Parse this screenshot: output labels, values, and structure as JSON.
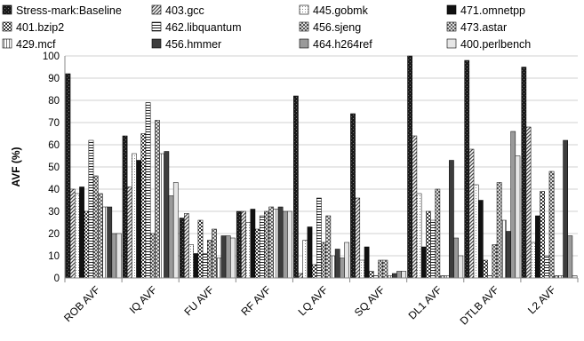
{
  "chart_data": {
    "type": "bar",
    "title": "",
    "xlabel": "",
    "ylabel": "AVF (%)",
    "ylim": [
      0,
      100
    ],
    "yticks": [
      0,
      10,
      20,
      30,
      40,
      50,
      60,
      70,
      80,
      90,
      100
    ],
    "grid": true,
    "legend_position": "top",
    "categories": [
      "ROB AVF",
      "IQ AVF",
      "FU AVF",
      "RF AVF",
      "LQ AVF",
      "SQ AVF",
      "DL1 AVF",
      "DTLB AVF",
      "L2 AVF"
    ],
    "series": [
      {
        "name": "Stress-mark:Baseline",
        "pattern": "p-stress",
        "values": [
          92,
          64,
          27,
          30,
          82,
          74,
          100,
          98,
          95
        ]
      },
      {
        "name": "403.gcc",
        "pattern": "p-bdiag",
        "values": [
          40,
          41,
          29,
          30,
          2,
          36,
          64,
          58,
          68
        ]
      },
      {
        "name": "445.gobmk",
        "pattern": "p-dots",
        "values": [
          38,
          56,
          15,
          25,
          17,
          8,
          38,
          42,
          16
        ]
      },
      {
        "name": "471.omnetpp",
        "pattern": "p-black",
        "values": [
          41,
          53,
          11,
          31,
          23,
          14,
          14,
          35,
          28
        ]
      },
      {
        "name": "401.bzip2",
        "pattern": "p-checker",
        "values": [
          30,
          65,
          26,
          22,
          6,
          3,
          30,
          8,
          39
        ]
      },
      {
        "name": "462.libquantum",
        "pattern": "p-hlines",
        "values": [
          62,
          79,
          11,
          28,
          36,
          1,
          26,
          1,
          10
        ]
      },
      {
        "name": "456.sjeng",
        "pattern": "p-diamond",
        "values": [
          46,
          20,
          17,
          30,
          16,
          8,
          40,
          15,
          48
        ]
      },
      {
        "name": "473.astar",
        "pattern": "p-xhatch",
        "values": [
          38,
          71,
          22,
          32,
          28,
          8,
          1,
          43,
          1
        ]
      },
      {
        "name": "429.mcf",
        "pattern": "p-vlines",
        "values": [
          32,
          56,
          9,
          31,
          10,
          1,
          1,
          26,
          1
        ]
      },
      {
        "name": "456.hmmer",
        "pattern": "p-dark",
        "values": [
          32,
          57,
          19,
          32,
          13,
          2,
          53,
          21,
          62
        ]
      },
      {
        "name": "464.h264ref",
        "pattern": "p-mid",
        "values": [
          20,
          37,
          19,
          30,
          9,
          3,
          18,
          66,
          19
        ]
      },
      {
        "name": "400.perlbench",
        "pattern": "p-light",
        "values": [
          20,
          43,
          18,
          30,
          16,
          3,
          10,
          55,
          1
        ]
      }
    ]
  }
}
